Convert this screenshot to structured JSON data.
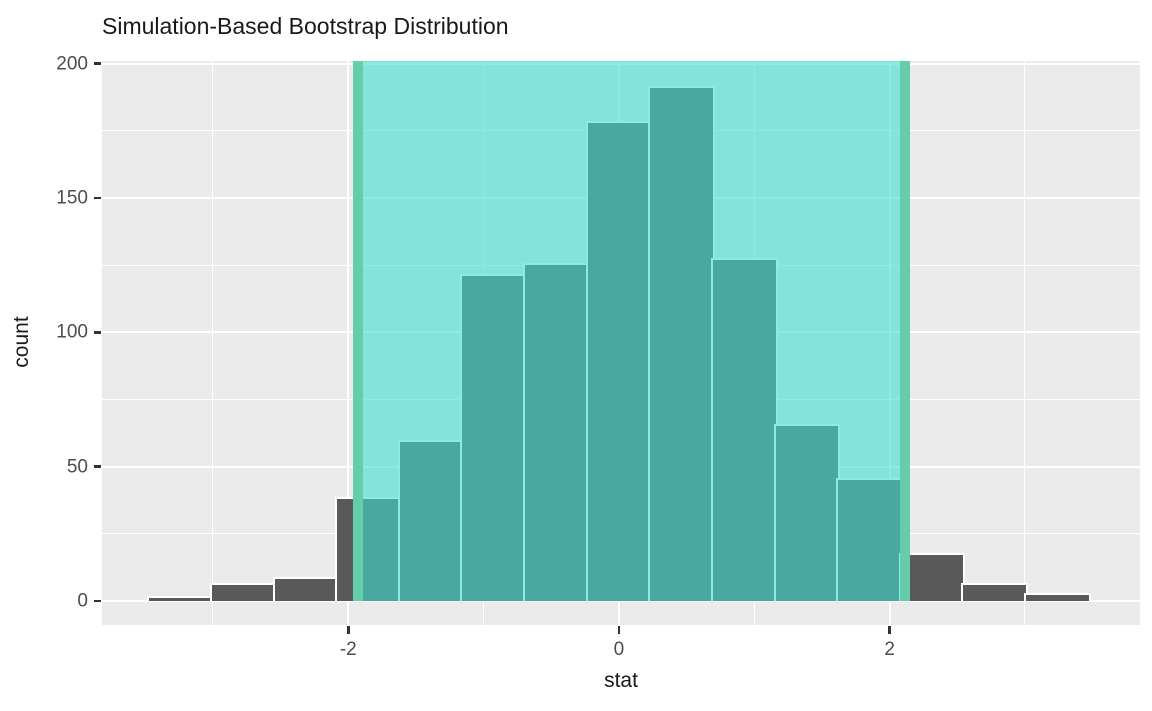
{
  "chart_data": {
    "type": "bar",
    "subtype": "histogram",
    "title": "Simulation-Based Bootstrap Distribution",
    "xlabel": "stat",
    "ylabel": "count",
    "bins": {
      "start": -3.47,
      "binwidth": 0.4627,
      "counts": [
        1,
        6,
        8,
        38,
        59,
        121,
        125,
        178,
        191,
        127,
        65,
        45,
        17,
        6,
        2
      ]
    },
    "confidence_interval": {
      "lower": -1.93,
      "upper": 2.11,
      "label": "shaded confidence interval region"
    },
    "x_ticks": {
      "major": [
        -2,
        0,
        2
      ],
      "labels": [
        "-2",
        "0",
        "2"
      ],
      "minor": [
        -3,
        -1,
        1,
        3
      ]
    },
    "y_ticks": {
      "major": [
        0,
        50,
        100,
        150,
        200
      ],
      "labels": [
        "0",
        "50",
        "100",
        "150",
        "200"
      ],
      "minor": [
        25,
        75,
        125,
        175
      ]
    },
    "xlim": [
      -3.82,
      3.85
    ],
    "ylim": [
      -9,
      201
    ],
    "grid": "on",
    "legend": "none",
    "colors": {
      "panel_background": "#EBEBEB",
      "gridline": "#FFFFFF",
      "bar_fill": "#595959",
      "bar_border": "#FFFFFF",
      "shade_fill": "#40E0D0",
      "shade_opacity": 0.6,
      "ci_line": "#66CDAA",
      "axis_text": "#4D4D4D",
      "axis_title": "#1A1A1A",
      "title_text": "#191919",
      "tick_mark": "#333333"
    }
  }
}
